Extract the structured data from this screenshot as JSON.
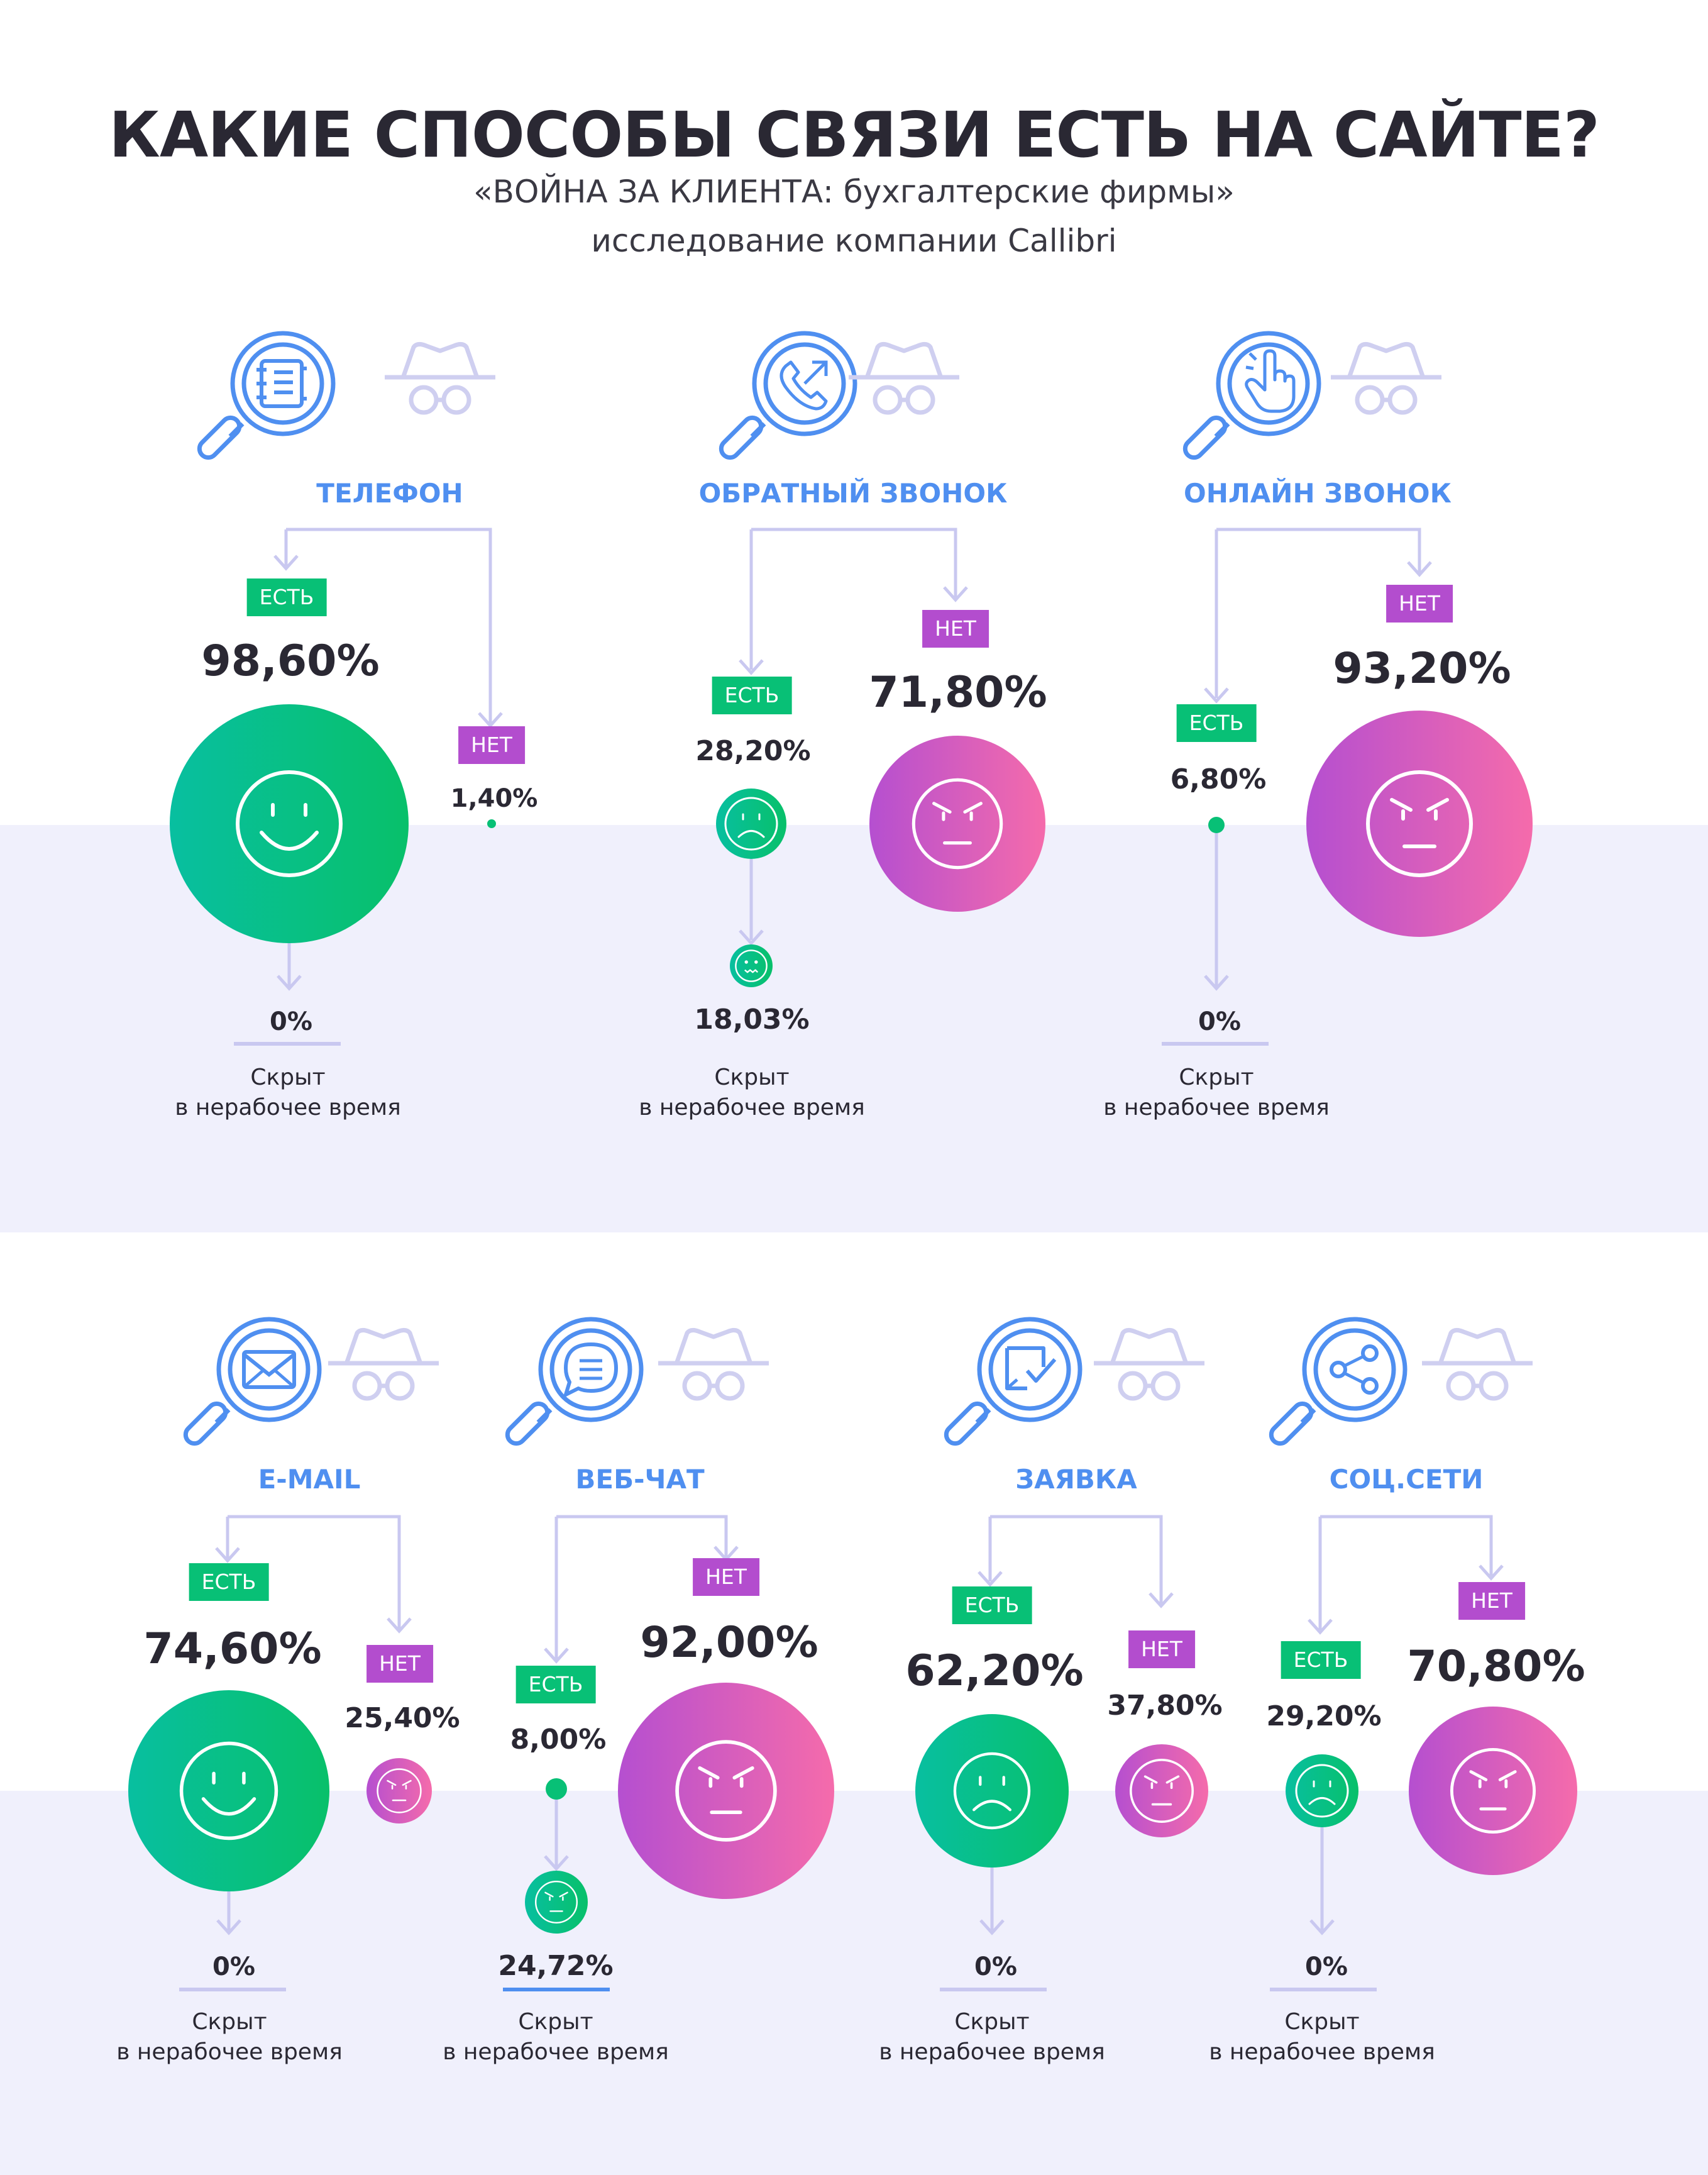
{
  "header": {
    "title": "КАКИЕ СПОСОБЫ СВЯЗИ ЕСТЬ НА САЙТЕ?",
    "subtitle_line1": "«ВОЙНА ЗА КЛИЕНТА: бухгалтерские фирмы»",
    "subtitle_line2": "исследование компании Callibri"
  },
  "labels": {
    "yes": "ЕСТЬ",
    "no": "НЕТ",
    "hidden_line1": "Скрыт",
    "hidden_line2": "в нерабочее время"
  },
  "colors": {
    "accent_blue": "#4f8ff0",
    "yes_green": "#08c076",
    "no_purple": "#b34dce",
    "no_pink": "#f46aac",
    "band": "#f0f0fc",
    "line": "#c9c8f0",
    "text": "#2a2833"
  },
  "channels": [
    {
      "id": "phone",
      "name": "ТЕЛЕФОН",
      "icon": "phone-book-icon",
      "yes": "98,60%",
      "no": "1,40%",
      "hidden": "0%"
    },
    {
      "id": "callback",
      "name": "ОБРАТНЫЙ ЗВОНОК",
      "icon": "callback-phone-icon",
      "yes": "28,20%",
      "no": "71,80%",
      "hidden": "18,03%"
    },
    {
      "id": "online-call",
      "name": "ОНЛАЙН ЗВОНОК",
      "icon": "pointing-hand-icon",
      "yes": "6,80%",
      "no": "93,20%",
      "hidden": "0%"
    },
    {
      "id": "email",
      "name": "E-MAIL",
      "icon": "envelope-icon",
      "yes": "74,60%",
      "no": "25,40%",
      "hidden": "0%"
    },
    {
      "id": "webchat",
      "name": "ВЕБ-ЧАТ",
      "icon": "chat-bubble-icon",
      "yes": "8,00%",
      "no": "92,00%",
      "hidden": "24,72%"
    },
    {
      "id": "request",
      "name": "ЗАЯВКА",
      "icon": "form-check-icon",
      "yes": "62,20%",
      "no": "37,80%",
      "hidden": "0%"
    },
    {
      "id": "social",
      "name": "СОЦ.СЕТИ",
      "icon": "share-icon",
      "yes": "29,20%",
      "no": "70,80%",
      "hidden": "0%"
    }
  ]
}
